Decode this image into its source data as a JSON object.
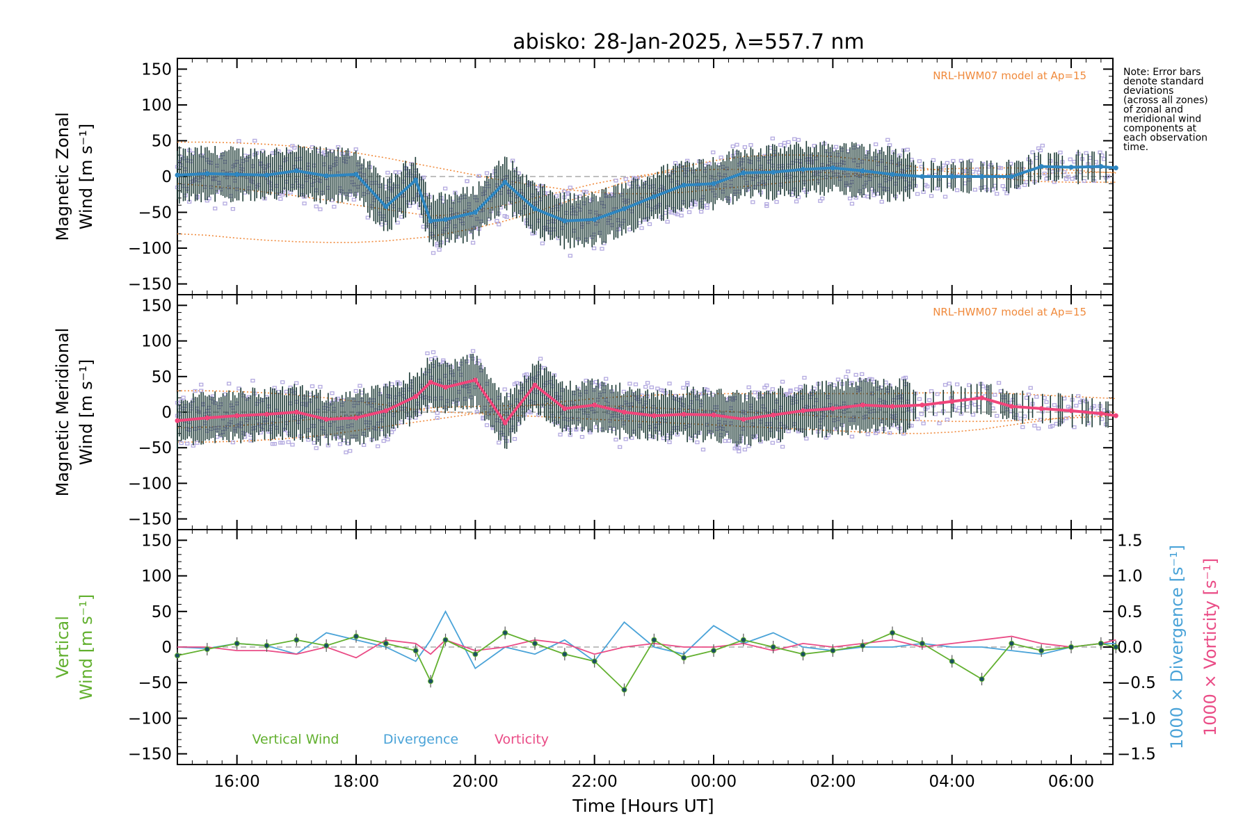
{
  "figure": {
    "title": "abisko: 28-Jan-2025, λ=557.7 nm",
    "note_lines": [
      "Note: Error bars",
      "denote standard",
      "deviations",
      "(across all zones)",
      "of zonal and",
      "meridional wind",
      "components at",
      "each observation",
      "time."
    ],
    "x_axis_label": "Time [Hours UT]"
  },
  "colors": {
    "zonal_mean": "#2e86c1",
    "zonal_mean_end": "#1f3fd6",
    "meridional_mean": "#f0457a",
    "vertical": "#62b02f",
    "divergence": "#4aa3d8",
    "vorticity": "#ea4c86",
    "model": "#f08a3c",
    "zone_points": "#b3a9e0",
    "error_bars": "#1c3a35"
  },
  "chart_data": [
    {
      "type": "line",
      "panel": "zonal",
      "ylabel_lines": [
        "Magnetic Zonal",
        "Wind [m s⁻¹]"
      ],
      "ylim": [
        -165,
        165
      ],
      "yticks": [
        -150,
        -100,
        -50,
        0,
        50,
        100,
        150
      ],
      "ytick_labels": [
        "−150",
        "−100",
        "−50",
        "0",
        "50",
        "100",
        "150"
      ],
      "annotation": "NRL-HWM07 model at Ap=15",
      "x": [
        "15:00",
        "15:30",
        "16:00",
        "16:30",
        "17:00",
        "17:30",
        "18:00",
        "18:30",
        "19:00",
        "19:15",
        "19:30",
        "20:00",
        "20:30",
        "21:00",
        "21:30",
        "22:00",
        "22:30",
        "23:00",
        "23:30",
        "00:00",
        "00:30",
        "01:00",
        "01:30",
        "02:00",
        "02:30",
        "03:00",
        "03:30",
        "04:00",
        "04:30",
        "05:00",
        "05:30",
        "06:00",
        "06:30",
        "06:45"
      ],
      "series": [
        {
          "values": [
            2,
            4,
            3,
            2,
            8,
            1,
            3,
            -42,
            -5,
            -62,
            -60,
            -50,
            -8,
            -45,
            -62,
            -60,
            -45,
            -28,
            -12,
            -10,
            5,
            6,
            10,
            12,
            8,
            3,
            0,
            0,
            0,
            0,
            14,
            13,
            14,
            12
          ]
        }
      ],
      "model_curves": [
        [
          48,
          48,
          47,
          45,
          42,
          38,
          33,
          26,
          18,
          14,
          10,
          2,
          -6,
          -12,
          -18,
          -22,
          -24,
          -24,
          -22,
          -18,
          -14,
          -10,
          -6,
          -2,
          2,
          6,
          9,
          11,
          12,
          12,
          11,
          9,
          6,
          5
        ],
        [
          -80,
          -82,
          -86,
          -89,
          -91,
          -92,
          -92,
          -90,
          -86,
          -84,
          -80,
          -72,
          -62,
          -50,
          -36,
          -22,
          -8,
          4,
          14,
          22,
          28,
          30,
          30,
          28,
          24,
          18,
          12,
          6,
          0,
          -4,
          -7,
          -8,
          -8,
          -8
        ],
        [
          -10,
          -13,
          -17,
          -22,
          -27,
          -33,
          -40,
          -46,
          -52,
          -55,
          -54,
          -48,
          -40,
          -30,
          -20,
          -10,
          -2,
          4,
          8,
          10,
          10,
          9,
          7,
          5,
          3,
          2,
          1,
          1,
          2,
          3,
          4,
          5,
          6,
          6
        ]
      ]
    },
    {
      "type": "line",
      "panel": "meridional",
      "ylabel_lines": [
        "Magnetic Meridional",
        "Wind [m s⁻¹]"
      ],
      "ylim": [
        -165,
        165
      ],
      "yticks": [
        -150,
        -100,
        -50,
        0,
        50,
        100,
        150
      ],
      "ytick_labels": [
        "−150",
        "−100",
        "−50",
        "0",
        "50",
        "100",
        "150"
      ],
      "annotation": "NRL-HWM07 model at Ap=15",
      "x": [
        "15:00",
        "15:30",
        "16:00",
        "16:30",
        "17:00",
        "17:30",
        "18:00",
        "18:30",
        "19:00",
        "19:15",
        "19:30",
        "20:00",
        "20:30",
        "21:00",
        "21:30",
        "22:00",
        "22:30",
        "23:00",
        "23:30",
        "00:00",
        "00:30",
        "01:00",
        "01:30",
        "02:00",
        "02:30",
        "03:00",
        "03:30",
        "04:00",
        "04:30",
        "05:00",
        "05:30",
        "06:00",
        "06:30",
        "06:45"
      ],
      "series": [
        {
          "values": [
            -12,
            -8,
            -5,
            -3,
            0,
            -10,
            -8,
            2,
            22,
            42,
            35,
            45,
            -15,
            38,
            5,
            10,
            0,
            -5,
            -3,
            -4,
            -10,
            -4,
            2,
            5,
            10,
            8,
            10,
            15,
            20,
            8,
            5,
            2,
            -2,
            -5
          ]
        }
      ],
      "model_curves": [
        [
          30,
          30,
          29,
          27,
          24,
          20,
          15,
          10,
          4,
          2,
          0,
          -2,
          -4,
          -6,
          -8,
          -10,
          -12,
          -14,
          -16,
          -18,
          -20,
          -22,
          -24,
          -26,
          -28,
          -30,
          -30,
          -28,
          -24,
          -18,
          -12,
          -6,
          -1,
          0
        ],
        [
          -42,
          -42,
          -41,
          -39,
          -36,
          -32,
          -26,
          -20,
          -14,
          -11,
          -8,
          -2,
          4,
          10,
          15,
          19,
          22,
          24,
          25,
          26,
          26,
          26,
          26,
          26,
          26,
          26,
          27,
          27,
          27,
          26,
          24,
          22,
          20,
          19
        ],
        [
          -22,
          -21,
          -19,
          -16,
          -12,
          -8,
          -4,
          0,
          4,
          6,
          7,
          8,
          9,
          10,
          10,
          9,
          8,
          6,
          4,
          2,
          0,
          -2,
          -4,
          -6,
          -8,
          -10,
          -12,
          -13,
          -13,
          -12,
          -10,
          -8,
          -6,
          -5
        ]
      ]
    },
    {
      "type": "line",
      "panel": "vertical",
      "ylabel_left_lines": [
        "Vertical",
        "Wind [m s⁻¹]"
      ],
      "ylabel_right_div": "1000 × Divergence [s⁻¹]",
      "ylabel_right_vort": "1000 × Vorticity [s⁻¹]",
      "ylim": [
        -165,
        165
      ],
      "yticks": [
        -150,
        -100,
        -50,
        0,
        50,
        100,
        150
      ],
      "ytick_labels": [
        "−150",
        "−100",
        "−50",
        "0",
        "50",
        "100",
        "150"
      ],
      "y2lim": [
        -1.65,
        1.65
      ],
      "y2ticks": [
        -1.5,
        -1.0,
        -0.5,
        0.0,
        0.5,
        1.0,
        1.5
      ],
      "y2tick_labels": [
        "−1.5",
        "−1.0",
        "−0.5",
        "0.0",
        "0.5",
        "1.0",
        "1.5"
      ],
      "legend": [
        "Vertical Wind",
        "Divergence",
        "Vorticity"
      ],
      "legend_placement": "bottom-left",
      "x": [
        "15:00",
        "15:30",
        "16:00",
        "16:30",
        "17:00",
        "17:30",
        "18:00",
        "18:30",
        "19:00",
        "19:15",
        "19:30",
        "20:00",
        "20:30",
        "21:00",
        "21:30",
        "22:00",
        "22:30",
        "23:00",
        "23:30",
        "00:00",
        "00:30",
        "01:00",
        "01:30",
        "02:00",
        "02:30",
        "03:00",
        "03:30",
        "04:00",
        "04:30",
        "05:00",
        "05:30",
        "06:00",
        "06:30",
        "06:45"
      ],
      "series": [
        {
          "values": [
            -12,
            -3,
            5,
            2,
            10,
            2,
            15,
            5,
            -5,
            -48,
            10,
            -10,
            20,
            5,
            -10,
            -20,
            -60,
            10,
            -15,
            -5,
            10,
            0,
            -10,
            -5,
            2,
            20,
            5,
            -20,
            -45,
            5,
            -5,
            0,
            5,
            0
          ]
        },
        {
          "values": [
            0.0,
            -0.02,
            0.05,
            0.02,
            -0.1,
            0.2,
            0.1,
            0.0,
            -0.2,
            0.1,
            0.5,
            -0.3,
            0.0,
            -0.1,
            0.1,
            -0.2,
            0.35,
            0.0,
            -0.1,
            0.3,
            0.05,
            0.2,
            0.0,
            -0.05,
            0.0,
            0.0,
            0.05,
            0.0,
            0.0,
            -0.05,
            -0.1,
            0.0,
            0.05,
            0.05
          ]
        },
        {
          "values": [
            0.0,
            0.0,
            -0.05,
            -0.05,
            -0.1,
            0.0,
            -0.15,
            0.1,
            0.05,
            -0.1,
            0.1,
            -0.05,
            0.0,
            0.1,
            0.05,
            -0.1,
            0.0,
            0.05,
            0.0,
            0.0,
            0.05,
            -0.05,
            0.05,
            0.0,
            0.05,
            0.1,
            0.0,
            0.05,
            0.1,
            0.15,
            0.05,
            0.0,
            0.05,
            0.1
          ]
        }
      ]
    }
  ],
  "x_axis": {
    "tick_labels": [
      "16:00",
      "18:00",
      "20:00",
      "22:00",
      "00:00",
      "02:00",
      "04:00",
      "06:00"
    ]
  }
}
